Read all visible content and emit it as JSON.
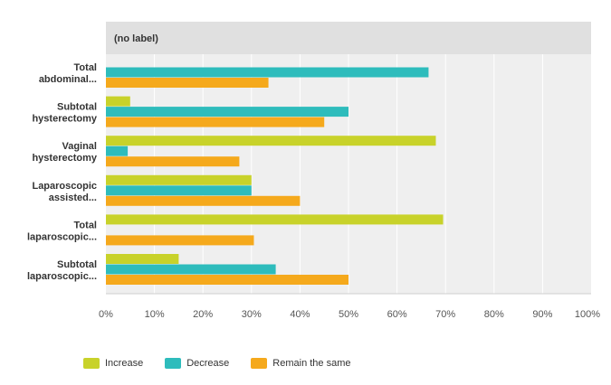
{
  "chart_data": {
    "type": "bar",
    "orientation": "horizontal",
    "panel_label": "(no label)",
    "categories": [
      [
        "Total",
        "abdominal..."
      ],
      [
        "Subtotal",
        "hysterectomy"
      ],
      [
        "Vaginal",
        "hysterectomy"
      ],
      [
        "Laparoscopic",
        "assisted..."
      ],
      [
        "Total",
        "laparoscopic..."
      ],
      [
        "Subtotal",
        "laparoscopic..."
      ]
    ],
    "series": [
      {
        "name": "Increase",
        "color": "#c8d22a",
        "values": [
          0,
          5,
          68,
          30,
          69.5,
          15
        ]
      },
      {
        "name": "Decrease",
        "color": "#2ebcbc",
        "values": [
          66.5,
          50,
          4.5,
          30,
          0,
          35
        ]
      },
      {
        "name": "Remain the same",
        "color": "#f5a91c",
        "values": [
          33.5,
          45,
          27.5,
          40,
          30.5,
          50
        ]
      }
    ],
    "xlim": [
      0,
      100
    ],
    "xticks": [
      "0%",
      "10%",
      "20%",
      "30%",
      "40%",
      "50%",
      "60%",
      "70%",
      "80%",
      "90%",
      "100%"
    ],
    "grid": true,
    "legend_position": "bottom"
  }
}
